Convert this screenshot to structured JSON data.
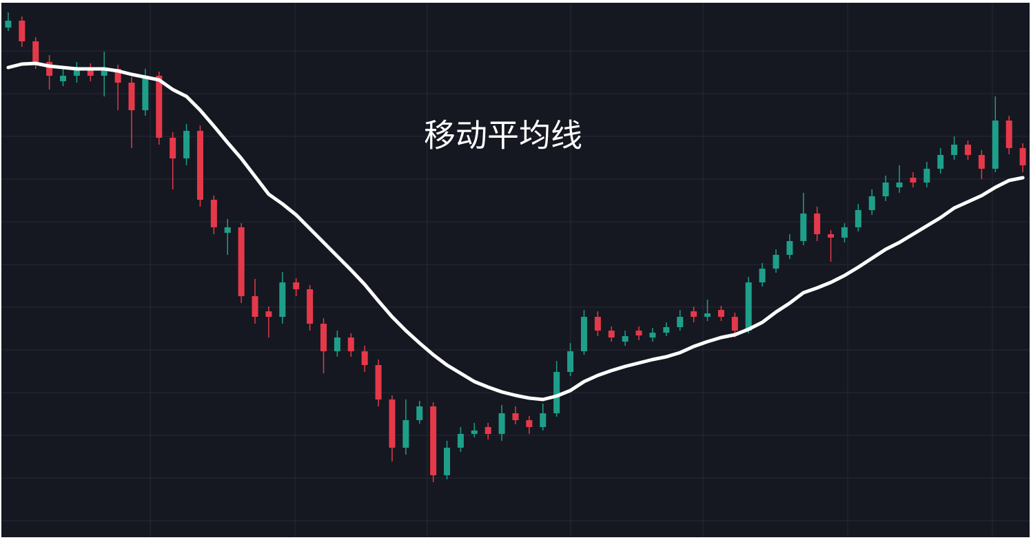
{
  "chart_data": {
    "type": "candlestick",
    "title": "移动平均线",
    "categories": [
      null,
      null,
      null,
      null,
      null,
      null,
      null,
      null,
      null,
      null,
      null,
      null,
      null,
      null,
      null,
      null,
      null,
      null,
      null,
      null,
      null,
      null,
      null,
      null,
      null,
      null,
      null,
      null,
      null,
      null,
      null,
      null,
      null,
      null,
      null,
      null,
      null,
      null,
      null,
      null,
      null,
      null,
      null,
      null,
      null,
      null,
      null,
      null,
      null,
      null,
      null,
      null,
      null,
      null,
      null,
      null,
      null,
      null,
      null,
      null,
      null,
      null,
      null,
      null,
      null,
      null,
      null,
      null,
      null,
      null,
      null,
      null,
      null,
      null,
      null
    ],
    "open": [
      740,
      750,
      720,
      690,
      662,
      670,
      680,
      670,
      680,
      660,
      620,
      670,
      580,
      550,
      590,
      490,
      442,
      450,
      350,
      328,
      320,
      370,
      360,
      310,
      270,
      290,
      270,
      250,
      200,
      130,
      170,
      190,
      90,
      130,
      150,
      160,
      150,
      180,
      170,
      160,
      180,
      240,
      270,
      320,
      300,
      284,
      300,
      290,
      297,
      305,
      328,
      320,
      330,
      320,
      300,
      370,
      390,
      410,
      430,
      470,
      440,
      435,
      450,
      475,
      495,
      508,
      522,
      515,
      535,
      555,
      570,
      555,
      535,
      605,
      565
    ],
    "high": [
      762,
      756,
      726,
      700,
      680,
      690,
      688,
      705,
      686,
      668,
      680,
      676,
      588,
      600,
      598,
      496,
      462,
      456,
      375,
      335,
      385,
      376,
      366,
      318,
      300,
      296,
      278,
      258,
      206,
      200,
      198,
      196,
      140,
      160,
      166,
      166,
      192,
      190,
      176,
      194,
      256,
      282,
      330,
      328,
      306,
      300,
      306,
      304,
      312,
      330,
      335,
      345,
      336,
      326,
      378,
      398,
      418,
      440,
      500,
      480,
      446,
      456,
      484,
      505,
      525,
      540,
      530,
      545,
      565,
      582,
      576,
      562,
      640,
      612,
      572
    ],
    "low": [
      735,
      712,
      680,
      650,
      655,
      660,
      662,
      640,
      620,
      565,
      612,
      570,
      505,
      540,
      480,
      440,
      410,
      340,
      310,
      290,
      310,
      350,
      300,
      238,
      262,
      262,
      240,
      190,
      110,
      120,
      165,
      80,
      84,
      124,
      145,
      142,
      140,
      164,
      150,
      155,
      175,
      234,
      265,
      292,
      284,
      278,
      286,
      284,
      292,
      300,
      312,
      314,
      314,
      290,
      296,
      364,
      384,
      404,
      424,
      430,
      400,
      428,
      444,
      468,
      488,
      500,
      508,
      508,
      528,
      548,
      548,
      520,
      530,
      556,
      530
    ],
    "close": [
      750,
      720,
      690,
      670,
      670,
      680,
      670,
      680,
      660,
      620,
      670,
      580,
      550,
      590,
      490,
      450,
      450,
      350,
      320,
      320,
      370,
      360,
      310,
      270,
      290,
      270,
      250,
      200,
      130,
      170,
      190,
      90,
      130,
      150,
      155,
      150,
      180,
      170,
      160,
      180,
      240,
      270,
      320,
      300,
      290,
      292,
      293,
      297,
      305,
      320,
      320,
      325,
      320,
      300,
      370,
      390,
      410,
      430,
      470,
      440,
      435,
      450,
      475,
      495,
      515,
      515,
      515,
      535,
      555,
      570,
      555,
      535,
      605,
      565,
      540
    ],
    "ma": [
      682,
      687,
      688,
      684,
      682,
      680,
      680,
      680,
      677,
      672,
      668,
      664,
      650,
      640,
      620,
      597,
      573,
      550,
      524,
      498,
      484,
      468,
      448,
      428,
      408,
      388,
      367,
      343,
      320,
      300,
      282,
      265,
      250,
      238,
      226,
      218,
      211,
      206,
      202,
      200,
      205,
      213,
      226,
      235,
      242,
      248,
      253,
      258,
      262,
      268,
      277,
      284,
      290,
      294,
      302,
      312,
      327,
      340,
      355,
      362,
      370,
      380,
      392,
      405,
      418,
      428,
      440,
      452,
      464,
      478,
      487,
      496,
      508,
      518,
      522
    ],
    "up_color": "#1e9f8a",
    "down_color": "#e5394a",
    "ma_color": "#ffffff",
    "background": "#151821",
    "ylim": [
      0,
      780
    ],
    "yticks": [
      24,
      86,
      148,
      210,
      272,
      334,
      396,
      458,
      520,
      582,
      644,
      706
    ],
    "grid": true
  }
}
